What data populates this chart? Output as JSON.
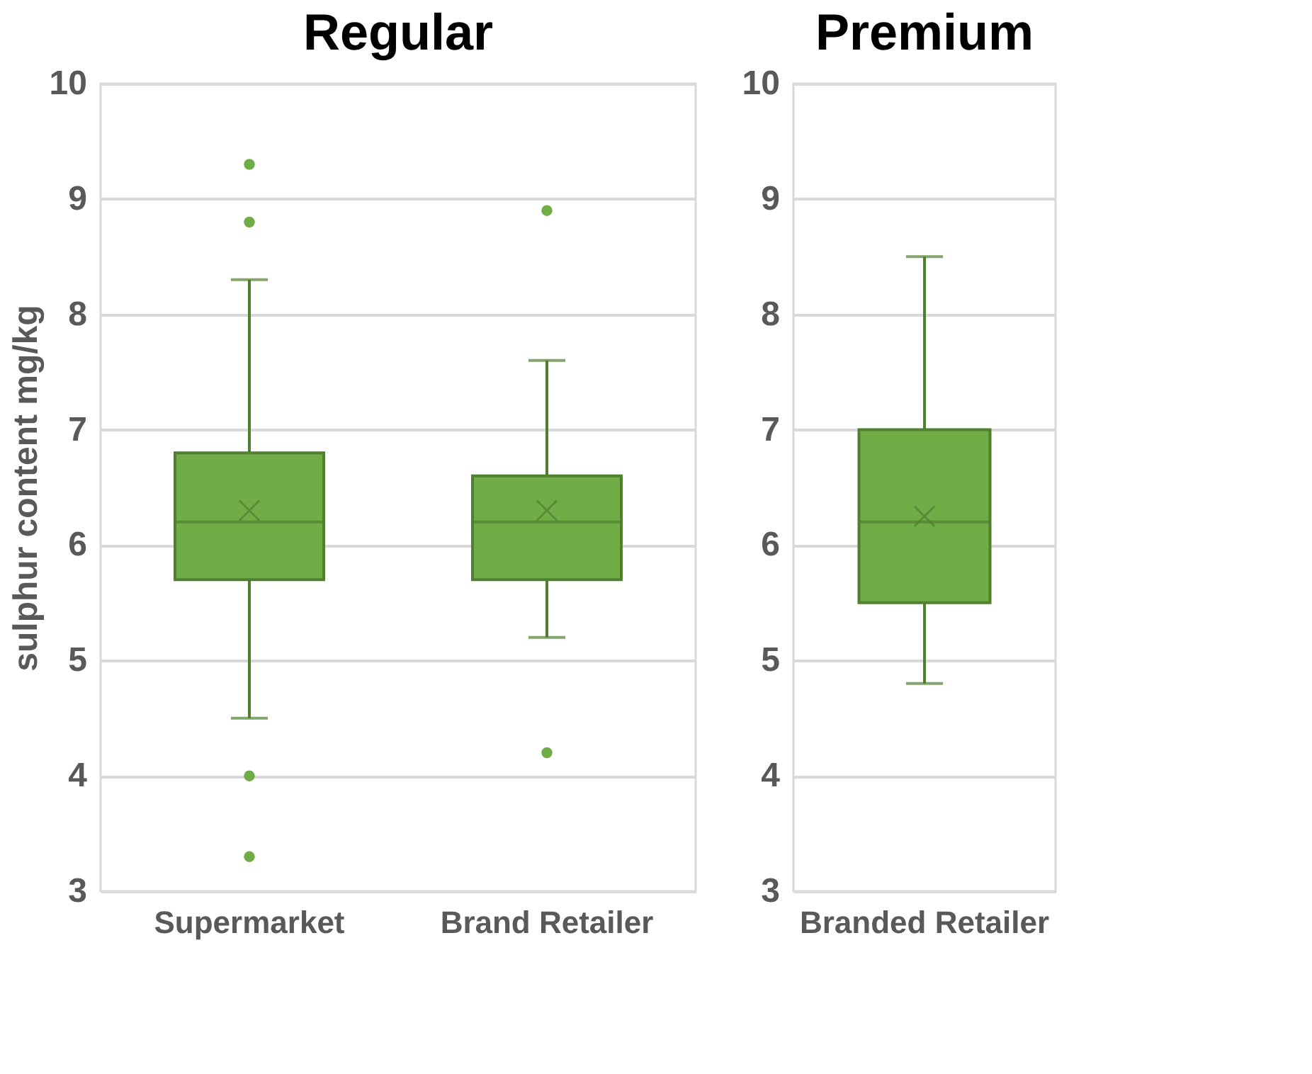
{
  "chart_data": [
    {
      "type": "box",
      "title": "Regular",
      "ylabel": "sulphur content mg/kg",
      "categories": [
        "Supermarket",
        "Brand Retailer"
      ],
      "ylim": [
        3,
        10
      ],
      "yticks": [
        3,
        4,
        5,
        6,
        7,
        8,
        9,
        10
      ],
      "grid": "y",
      "series": [
        {
          "color": "#70ad47",
          "boxes": [
            {
              "low": 4.5,
              "q1": 5.7,
              "median": 6.2,
              "q3": 6.8,
              "high": 8.3,
              "mean": 6.3,
              "outliers": [
                9.3,
                8.8,
                4.0,
                3.3
              ]
            },
            {
              "low": 5.2,
              "q1": 5.7,
              "median": 6.2,
              "q3": 6.6,
              "high": 7.6,
              "mean": 6.3,
              "outliers": [
                8.9,
                4.2
              ]
            }
          ]
        }
      ]
    },
    {
      "type": "box",
      "title": "Premium",
      "categories": [
        "Branded Retailer"
      ],
      "ylim": [
        3,
        10
      ],
      "yticks": [
        3,
        4,
        5,
        6,
        7,
        8,
        9,
        10
      ],
      "grid": "y",
      "series": [
        {
          "color": "#70ad47",
          "boxes": [
            {
              "low": 4.8,
              "q1": 5.5,
              "median": 6.2,
              "q3": 7.0,
              "high": 8.5,
              "mean": 6.25
            }
          ]
        }
      ]
    }
  ]
}
